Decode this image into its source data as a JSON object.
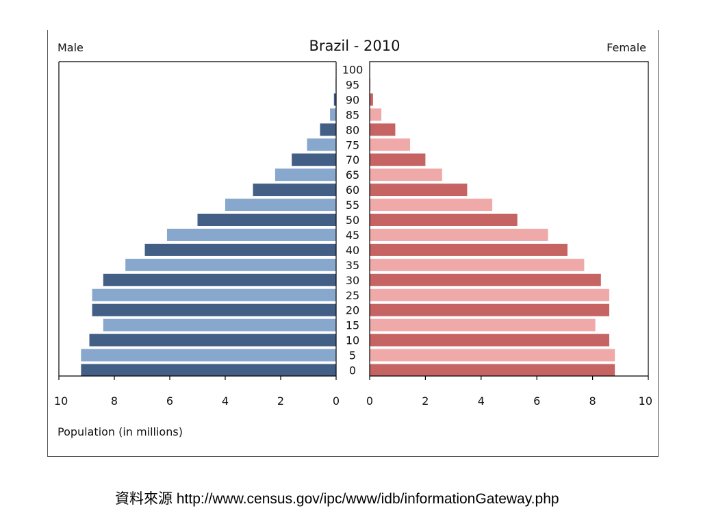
{
  "chart_data": {
    "type": "bar",
    "title": "Brazil - 2010",
    "left_label": "Male",
    "right_label": "Female",
    "xlabel": "Population (in millions)",
    "xlim": [
      0,
      10
    ],
    "x_ticks": [
      "10",
      "8",
      "6",
      "4",
      "2",
      "0",
      "0",
      "2",
      "4",
      "6",
      "8",
      "10"
    ],
    "categories": [
      "0",
      "5",
      "10",
      "15",
      "20",
      "25",
      "30",
      "35",
      "40",
      "45",
      "50",
      "55",
      "60",
      "65",
      "70",
      "75",
      "80",
      "85",
      "90",
      "95",
      "100"
    ],
    "series": [
      {
        "name": "Male",
        "values": [
          9.2,
          9.2,
          8.9,
          8.4,
          8.8,
          8.8,
          8.4,
          7.6,
          6.9,
          6.1,
          5.0,
          4.0,
          3.0,
          2.2,
          1.6,
          1.05,
          0.58,
          0.22,
          0.08,
          0.02,
          0.005
        ]
      },
      {
        "name": "Female",
        "values": [
          8.8,
          8.8,
          8.6,
          8.1,
          8.6,
          8.6,
          8.3,
          7.7,
          7.1,
          6.4,
          5.3,
          4.4,
          3.5,
          2.6,
          2.0,
          1.45,
          0.92,
          0.42,
          0.12,
          0.03,
          0.01
        ]
      }
    ],
    "colors": {
      "male_dark": "#435f85",
      "male_light": "#87a7cc",
      "female_dark": "#c66464",
      "female_light": "#f0a9a9"
    }
  },
  "source": {
    "label": "資料來源",
    "url": "http://www.census.gov/ipc/www/idb/informationGateway.php"
  }
}
